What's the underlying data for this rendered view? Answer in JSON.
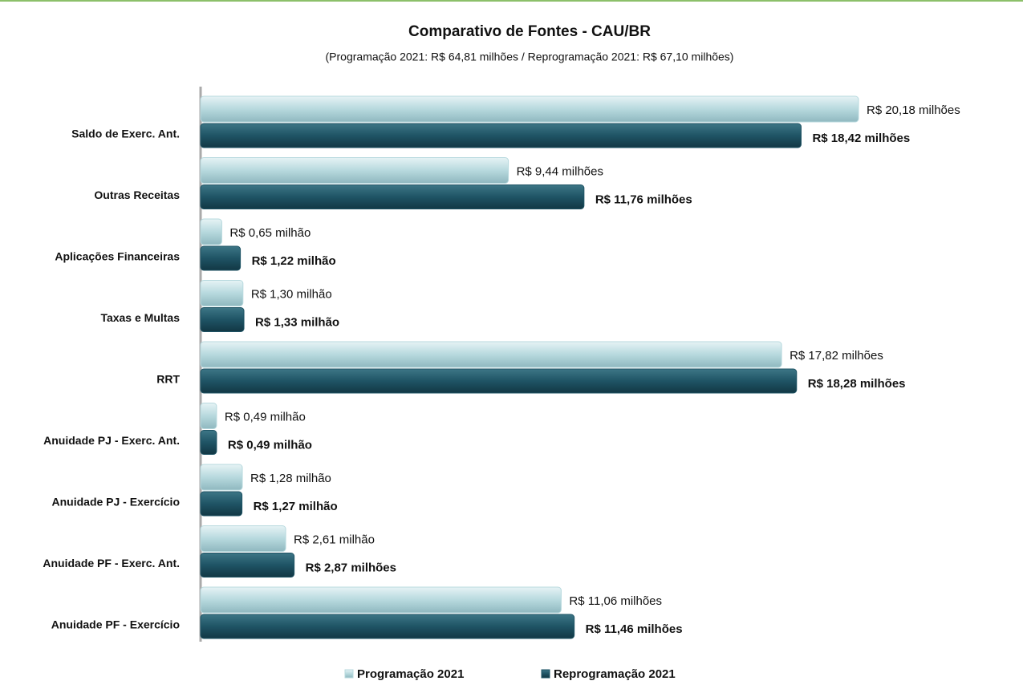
{
  "chart_data": {
    "type": "bar",
    "orientation": "horizontal",
    "title": "Comparativo de Fontes - CAU/BR",
    "subtitle": "(Programação 2021: R$ 64,81 milhões / Reprogramação 2021: R$ 67,10 milhões)",
    "categories": [
      "Saldo de Exerc. Ant.",
      "Outras Receitas",
      "Aplicações Financeiras",
      "Taxas e Multas",
      "RRT",
      "Anuidade PJ - Exerc. Ant.",
      "Anuidade PJ - Exercício",
      "Anuidade PF - Exerc. Ant.",
      "Anuidade PF - Exercício"
    ],
    "series": [
      {
        "name": "Programação 2021",
        "color": "#b7d9de",
        "values": [
          20.18,
          9.44,
          0.65,
          1.3,
          17.82,
          0.49,
          1.28,
          2.61,
          11.06
        ],
        "value_labels": [
          "R$ 20,18 milhões",
          "R$ 9,44 milhões",
          "R$ 0,65 milhão",
          "R$ 1,30 milhão",
          "R$ 17,82 milhões",
          "R$ 0,49 milhão",
          "R$ 1,28 milhão",
          "R$ 2,61 milhão",
          "R$ 11,06 milhões"
        ]
      },
      {
        "name": "Reprogramação 2021",
        "color": "#1f5465",
        "values": [
          18.42,
          11.76,
          1.22,
          1.33,
          18.28,
          0.49,
          1.27,
          2.87,
          11.46
        ],
        "value_labels": [
          "R$ 18,42 milhões",
          "R$ 11,76 milhões",
          "R$ 1,22 milhão",
          "R$ 1,33 milhão",
          "R$ 18,28 milhões",
          "R$ 0,49 milhão",
          "R$ 1,27 milhão",
          "R$ 2,87 milhões",
          "R$ 11,46 milhões"
        ]
      }
    ],
    "legend": "bottom"
  }
}
